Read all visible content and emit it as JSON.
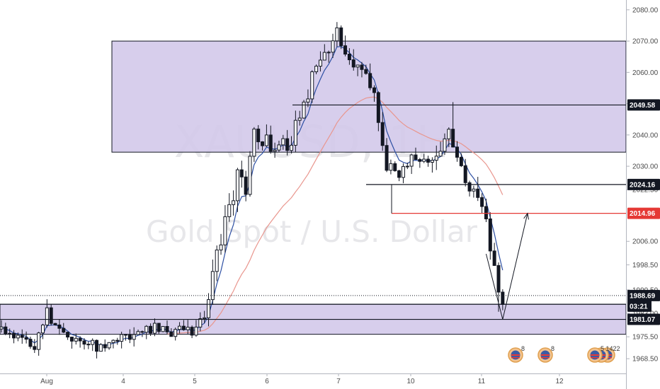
{
  "chart_data": {
    "type": "candlestick",
    "symbol_watermark": "XAUUSD, 1H",
    "name_watermark": "Gold Spot / U.S. Dollar",
    "ylim": [
      1966.5,
      2082.0
    ],
    "y_ticks": [
      "2080.00",
      "2070.00",
      "2060.00",
      "2050.00",
      "2040.00",
      "2030.00",
      "2022.50",
      "2006.00",
      "1998.50",
      "1990.50",
      "1983.00",
      "1975.50",
      "1968.50"
    ],
    "x_ticks": [
      "Aug",
      "4",
      "5",
      "6",
      "7",
      "10",
      "11",
      "12"
    ],
    "price_tags": [
      {
        "label": "2049.58",
        "value": 2049.58,
        "style": "dark"
      },
      {
        "label": "2024.16",
        "value": 2024.16,
        "style": "dark"
      },
      {
        "label": "2014.96",
        "value": 2014.96,
        "style": "red"
      },
      {
        "label": "1988.69",
        "value": 1988.69,
        "style": "dark"
      },
      {
        "label": "03:21",
        "value": 1985.3,
        "style": "dark"
      },
      {
        "label": "1981.07",
        "value": 1981.07,
        "style": "dark"
      }
    ],
    "zones": [
      {
        "name": "supply-zone",
        "from": 2034.5,
        "to": 2070.0
      },
      {
        "name": "demand-zone",
        "from": 1976.3,
        "to": 1985.9
      }
    ],
    "levels": [
      {
        "value": 2049.58,
        "color": "#131722"
      },
      {
        "value": 2024.16,
        "color": "#131722"
      },
      {
        "value": 2014.96,
        "color": "#e53935"
      },
      {
        "value": 1985.9,
        "color": "#131722"
      },
      {
        "value": 1981.07,
        "color": "#131722"
      }
    ],
    "dotted_level": 1988.69,
    "projection": [
      {
        "bar": 117,
        "price": 2002.0
      },
      {
        "bar": 121,
        "price": 1981.07
      },
      {
        "bar": 127,
        "price": 2014.96
      }
    ],
    "colors": {
      "candle": "#131722",
      "ma_fast": "#2d4fa3",
      "ma_slow": "#e9968e",
      "zone_fill": "#d3c9ea",
      "zone_border": "#131722",
      "accent_red": "#e53935"
    },
    "event_badge_labels": [
      "8",
      "8",
      "5 1422"
    ]
  }
}
